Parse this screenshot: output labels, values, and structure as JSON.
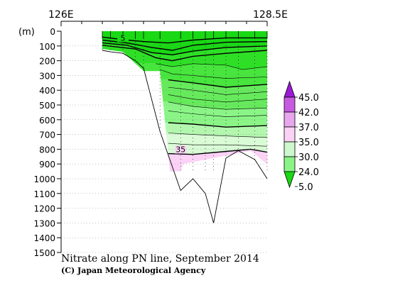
{
  "chart_data": {
    "type": "section-contour",
    "title": "Nitrate along PN line, September 2014",
    "credit": "(C) Japan Meteorological Agency",
    "x_axis": {
      "left_label": "126E",
      "right_label": "128.5E",
      "range": [
        126.0,
        128.5
      ]
    },
    "y_axis": {
      "unit_label": "(m)",
      "ticks": [
        0,
        100,
        200,
        300,
        400,
        500,
        600,
        700,
        800,
        900,
        1000,
        1100,
        1200,
        1300,
        1400,
        1500
      ],
      "range": [
        0,
        1500
      ],
      "reversed": true
    },
    "station_longitudes": [
      126.5,
      126.6,
      126.75,
      126.9,
      127.0,
      127.2,
      127.45,
      127.6,
      127.75,
      127.85,
      128.0,
      128.15,
      128.35,
      128.5
    ],
    "bottom_profile": {
      "lon": [
        126.5,
        126.6,
        126.75,
        126.9,
        127.0,
        127.2,
        127.45,
        127.6,
        127.75,
        127.85,
        128.0,
        128.15,
        128.35,
        128.5
      ],
      "depth": [
        130,
        140,
        150,
        200,
        250,
        680,
        1080,
        1000,
        1100,
        1300,
        860,
        810,
        870,
        1000
      ]
    },
    "data_extent": [
      {
        "lon": 126.5,
        "depth": 120
      },
      {
        "lon": 126.75,
        "depth": 140
      },
      {
        "lon": 127.0,
        "depth": 270
      },
      {
        "lon": 127.2,
        "depth": 270
      },
      {
        "lon": 127.32,
        "depth": 950
      },
      {
        "lon": 127.45,
        "depth": 950
      },
      {
        "lon": 127.48,
        "depth": 900
      },
      {
        "lon": 128.3,
        "depth": 810
      },
      {
        "lon": 128.5,
        "depth": 900
      }
    ],
    "contours": [
      {
        "value": 5,
        "label": "5",
        "pts": [
          [
            126.5,
            40
          ],
          [
            126.8,
            60
          ],
          [
            127.0,
            70
          ],
          [
            127.3,
            80
          ],
          [
            127.6,
            60
          ],
          [
            128.0,
            45
          ],
          [
            128.5,
            45
          ]
        ]
      },
      {
        "value": 10,
        "pts": [
          [
            126.5,
            60
          ],
          [
            126.8,
            80
          ],
          [
            127.1,
            110
          ],
          [
            127.35,
            130
          ],
          [
            127.6,
            95
          ],
          [
            128.0,
            75
          ],
          [
            128.5,
            70
          ]
        ]
      },
      {
        "value": 15,
        "pts": [
          [
            126.5,
            80
          ],
          [
            126.8,
            95
          ],
          [
            127.1,
            145
          ],
          [
            127.35,
            160
          ],
          [
            127.6,
            135
          ],
          [
            128.0,
            110
          ],
          [
            128.5,
            100
          ]
        ]
      },
      {
        "value": 20,
        "pts": [
          [
            126.5,
            95
          ],
          [
            126.9,
            120
          ],
          [
            127.15,
            180
          ],
          [
            127.35,
            200
          ],
          [
            127.6,
            170
          ],
          [
            128.0,
            150
          ],
          [
            128.5,
            130
          ]
        ]
      },
      {
        "value": 22,
        "pts": [
          [
            127.15,
            220
          ],
          [
            127.35,
            240
          ],
          [
            127.6,
            220
          ],
          [
            128.0,
            230
          ],
          [
            128.2,
            260
          ],
          [
            128.5,
            240
          ]
        ]
      },
      {
        "value": 24,
        "pts": [
          [
            127.2,
            260
          ],
          [
            127.35,
            290
          ],
          [
            127.6,
            300
          ],
          [
            128.0,
            320
          ],
          [
            128.5,
            310
          ]
        ]
      },
      {
        "value": 25,
        "pts": [
          [
            127.3,
            330
          ],
          [
            127.6,
            350
          ],
          [
            128.0,
            380
          ],
          [
            128.5,
            360
          ]
        ]
      },
      {
        "value": 26,
        "pts": [
          [
            127.3,
            380
          ],
          [
            127.6,
            400
          ],
          [
            128.0,
            430
          ],
          [
            128.5,
            410
          ]
        ]
      },
      {
        "value": 27,
        "pts": [
          [
            127.3,
            430
          ],
          [
            127.6,
            460
          ],
          [
            128.0,
            480
          ],
          [
            128.5,
            460
          ]
        ]
      },
      {
        "value": 28,
        "pts": [
          [
            127.3,
            480
          ],
          [
            127.6,
            510
          ],
          [
            128.0,
            530
          ],
          [
            128.5,
            520
          ]
        ]
      },
      {
        "value": 29,
        "pts": [
          [
            127.3,
            540
          ],
          [
            127.6,
            560
          ],
          [
            128.0,
            580
          ],
          [
            128.5,
            570
          ]
        ]
      },
      {
        "value": 30,
        "pts": [
          [
            127.3,
            620
          ],
          [
            127.6,
            630
          ],
          [
            128.0,
            650
          ],
          [
            128.5,
            640
          ]
        ]
      },
      {
        "value": 31,
        "pts": [
          [
            127.3,
            690
          ],
          [
            127.6,
            700
          ],
          [
            128.0,
            710
          ],
          [
            128.5,
            720
          ]
        ]
      },
      {
        "value": 33,
        "pts": [
          [
            127.3,
            760
          ],
          [
            127.6,
            770
          ],
          [
            128.0,
            770
          ],
          [
            128.5,
            780
          ]
        ]
      },
      {
        "value": 35,
        "label": "35",
        "pts": [
          [
            127.3,
            830
          ],
          [
            127.6,
            835
          ],
          [
            128.0,
            815
          ],
          [
            128.3,
            800
          ],
          [
            128.5,
            820
          ]
        ]
      }
    ],
    "colorbar": {
      "levels": [
        "45.0",
        "42.0",
        "37.0",
        "35.0",
        "30.0",
        "24.0",
        "5.0"
      ],
      "colors": [
        "#9a1ad6",
        "#c65ae3",
        "#e7a6ee",
        "#fbd2f6",
        "#cdf7cc",
        "#8af586",
        "#19d814"
      ]
    },
    "zone_colors": [
      "#19d814",
      "#2edf26",
      "#47e53d",
      "#66ea5c",
      "#8af586",
      "#b3f7af",
      "#d9fbd6",
      "#fbd2f6"
    ]
  }
}
